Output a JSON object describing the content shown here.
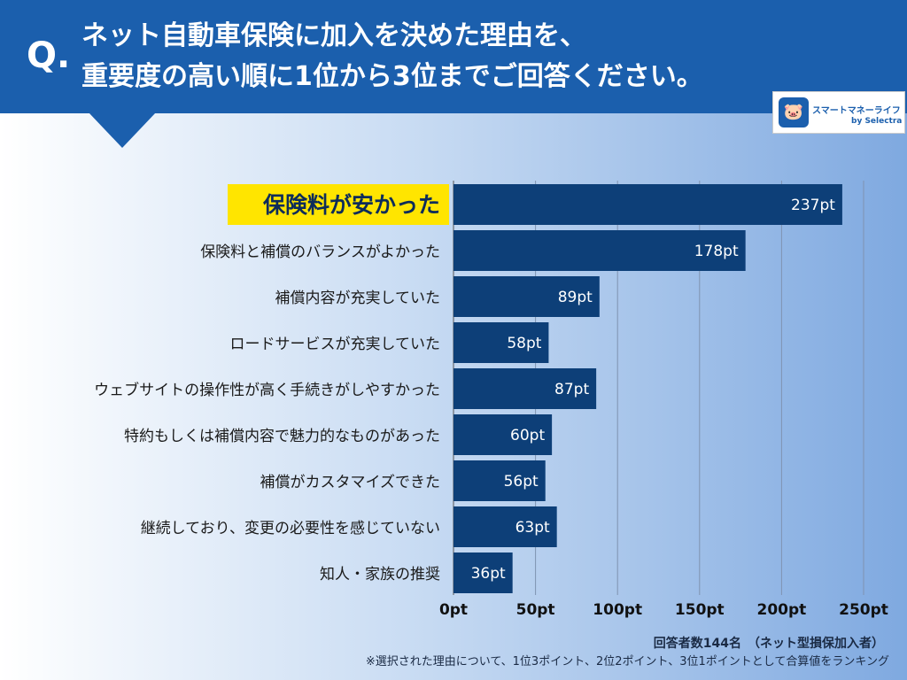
{
  "header": {
    "q": "Q.",
    "title_line1": "ネット自動車保険に加入を決めた理由を、",
    "title_line2": "重要度の高い順に1位から3位までご回答ください。"
  },
  "logo": {
    "name": "スマートマネーライフ",
    "sub": "by Selectra",
    "icon": "piggy-bank-icon"
  },
  "colors": {
    "header": "#1b5fad",
    "bar": "#0d3f78",
    "highlight": "#ffe500"
  },
  "chart_data": {
    "type": "bar",
    "orientation": "horizontal",
    "categories": [
      "保険料が安かった",
      "保険料と補償のバランスがよかった",
      "補償内容が充実していた",
      "ロードサービスが充実していた",
      "ウェブサイトの操作性が高く手続きがしやすかった",
      "特約もしくは補償内容で魅力的なものがあった",
      "補償がカスタマイズできた",
      "継続しており、変更の必要性を感じていない",
      "知人・家族の推奨"
    ],
    "values": [
      237,
      178,
      89,
      58,
      87,
      60,
      56,
      63,
      36
    ],
    "data_labels": [
      "237pt",
      "178pt",
      "89pt",
      "58pt",
      "87pt",
      "60pt",
      "56pt",
      "63pt",
      "36pt"
    ],
    "xlim": [
      0,
      250
    ],
    "xticks": [
      0,
      50,
      100,
      150,
      200,
      250
    ],
    "xtick_labels": [
      "0pt",
      "50pt",
      "100pt",
      "150pt",
      "200pt",
      "250pt"
    ],
    "grid": true,
    "highlighted_category": "保険料が安かった"
  },
  "notes": {
    "respondents": "回答者数144名　（ネット型損保加入者）",
    "method": "※選択された理由について、1位3ポイント、2位2ポイント、3位1ポイントとして合算値をランキング"
  }
}
